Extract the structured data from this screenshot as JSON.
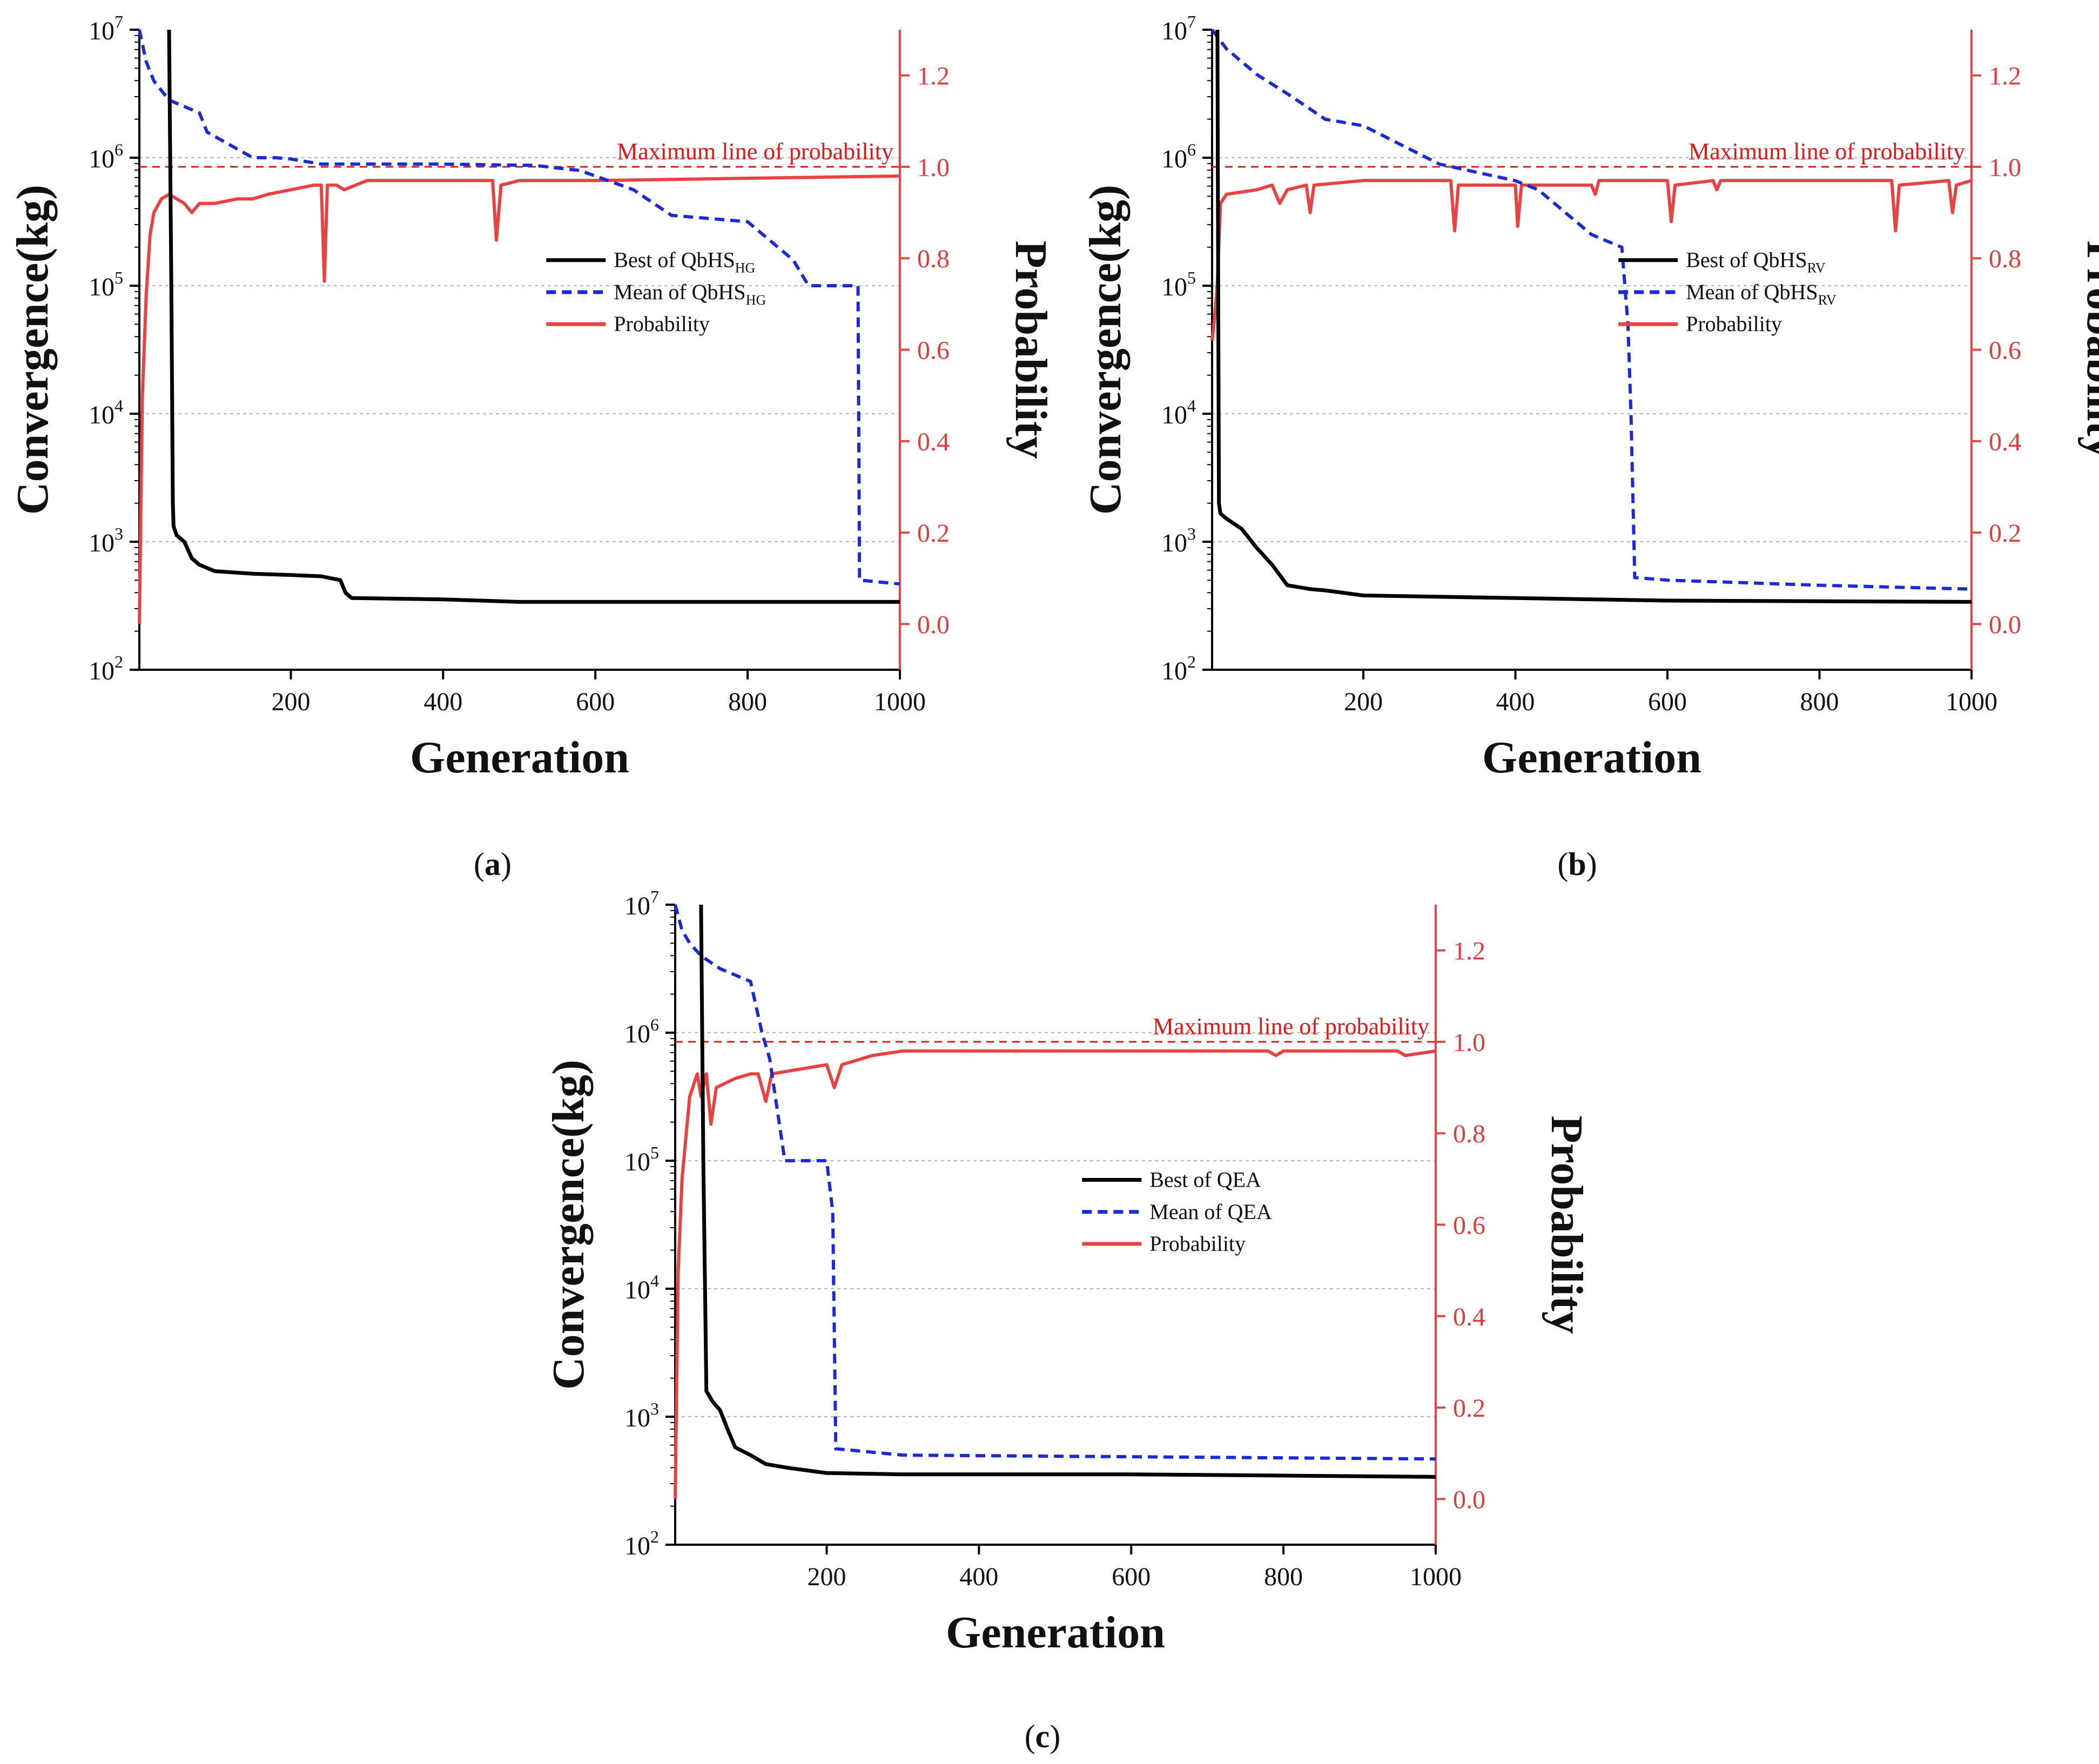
{
  "colors": {
    "best": "#000000",
    "mean": "#1a2bd6",
    "probability": "#e84343",
    "max_line": "#e01818",
    "grid": "#b8b8b8",
    "right_axis": "#e84343"
  },
  "chart_data": [
    {
      "id": "a",
      "type": "line",
      "caption_letter": "a",
      "xlabel": "Generation",
      "ylabel_left": "Convergence(kg)",
      "ylabel_right": "Probability",
      "xlim": [
        1,
        1000
      ],
      "ylim_left_log10": [
        2,
        7
      ],
      "ylim_right": [
        -0.1,
        1.3
      ],
      "x_ticks": [
        200,
        400,
        600,
        800,
        1000
      ],
      "left_tick_labels": [
        {
          "b": "10",
          "e": "2"
        },
        {
          "b": "10",
          "e": "3"
        },
        {
          "b": "10",
          "e": "4"
        },
        {
          "b": "10",
          "e": "5"
        },
        {
          "b": "10",
          "e": "6"
        },
        {
          "b": "10",
          "e": "7"
        }
      ],
      "right_ticks": [
        "0.0",
        "0.2",
        "0.4",
        "0.6",
        "0.8",
        "1.0",
        "1.2"
      ],
      "max_line_value": 1.0,
      "max_line_label": "Maximum line of probability",
      "legend": [
        {
          "key": "best",
          "text": "Best of QbHS",
          "sub": "HG"
        },
        {
          "key": "mean",
          "text": "Mean of QbHS",
          "sub": "HG"
        },
        {
          "key": "probability",
          "text": "Probability",
          "sub": ""
        }
      ],
      "series": {
        "best": [
          [
            40,
            7.2
          ],
          [
            43,
            5.0
          ],
          [
            45,
            3.3
          ],
          [
            46,
            3.12
          ],
          [
            50,
            3.05
          ],
          [
            60,
            3.0
          ],
          [
            70,
            2.87
          ],
          [
            80,
            2.82
          ],
          [
            100,
            2.77
          ],
          [
            150,
            2.75
          ],
          [
            200,
            2.74
          ],
          [
            240,
            2.73
          ],
          [
            265,
            2.7
          ],
          [
            272,
            2.6
          ],
          [
            280,
            2.56
          ],
          [
            400,
            2.55
          ],
          [
            450,
            2.54
          ],
          [
            500,
            2.53
          ],
          [
            1000,
            2.53
          ]
        ],
        "mean": [
          [
            1,
            7.05
          ],
          [
            10,
            6.75
          ],
          [
            20,
            6.6
          ],
          [
            40,
            6.45
          ],
          [
            80,
            6.35
          ],
          [
            90,
            6.2
          ],
          [
            120,
            6.1
          ],
          [
            150,
            6.0
          ],
          [
            180,
            6.0
          ],
          [
            200,
            5.99
          ],
          [
            240,
            5.95
          ],
          [
            300,
            5.95
          ],
          [
            400,
            5.95
          ],
          [
            520,
            5.94
          ],
          [
            580,
            5.9
          ],
          [
            650,
            5.75
          ],
          [
            700,
            5.55
          ],
          [
            800,
            5.5
          ],
          [
            820,
            5.4
          ],
          [
            860,
            5.2
          ],
          [
            880,
            5.0
          ],
          [
            945,
            5.0
          ],
          [
            947,
            2.7
          ],
          [
            1000,
            2.67
          ]
        ],
        "probability": [
          [
            1,
            0.0
          ],
          [
            5,
            0.5
          ],
          [
            10,
            0.72
          ],
          [
            15,
            0.85
          ],
          [
            20,
            0.9
          ],
          [
            30,
            0.93
          ],
          [
            40,
            0.94
          ],
          [
            50,
            0.93
          ],
          [
            60,
            0.92
          ],
          [
            70,
            0.9
          ],
          [
            80,
            0.92
          ],
          [
            100,
            0.92
          ],
          [
            130,
            0.93
          ],
          [
            150,
            0.93
          ],
          [
            170,
            0.94
          ],
          [
            200,
            0.95
          ],
          [
            230,
            0.96
          ],
          [
            240,
            0.96
          ],
          [
            244,
            0.75
          ],
          [
            248,
            0.96
          ],
          [
            260,
            0.96
          ],
          [
            270,
            0.95
          ],
          [
            300,
            0.97
          ],
          [
            400,
            0.97
          ],
          [
            465,
            0.97
          ],
          [
            470,
            0.84
          ],
          [
            476,
            0.96
          ],
          [
            500,
            0.97
          ],
          [
            600,
            0.97
          ],
          [
            1000,
            0.98
          ]
        ]
      }
    },
    {
      "id": "b",
      "type": "line",
      "caption_letter": "b",
      "xlabel": "Generation",
      "ylabel_left": "Convergence(kg)",
      "ylabel_right": "Probability",
      "xlim": [
        1,
        1000
      ],
      "ylim_left_log10": [
        2,
        7
      ],
      "ylim_right": [
        -0.1,
        1.3
      ],
      "x_ticks": [
        200,
        400,
        600,
        800,
        1000
      ],
      "left_tick_labels": [
        {
          "b": "10",
          "e": "2"
        },
        {
          "b": "10",
          "e": "3"
        },
        {
          "b": "10",
          "e": "4"
        },
        {
          "b": "10",
          "e": "5"
        },
        {
          "b": "10",
          "e": "6"
        },
        {
          "b": "10",
          "e": "7"
        }
      ],
      "right_ticks": [
        "0.0",
        "0.2",
        "0.4",
        "0.6",
        "0.8",
        "1.0",
        "1.2"
      ],
      "max_line_value": 1.0,
      "max_line_label": "Maximum line of probability",
      "legend": [
        {
          "key": "best",
          "text": "Best of QbHS",
          "sub": "RV"
        },
        {
          "key": "mean",
          "text": "Mean of QbHS",
          "sub": "RV"
        },
        {
          "key": "probability",
          "text": "Probability",
          "sub": ""
        }
      ],
      "series": {
        "best": [
          [
            8,
            7.2
          ],
          [
            9,
            5.0
          ],
          [
            10,
            3.3
          ],
          [
            12,
            3.22
          ],
          [
            20,
            3.18
          ],
          [
            40,
            3.1
          ],
          [
            60,
            2.95
          ],
          [
            80,
            2.82
          ],
          [
            100,
            2.66
          ],
          [
            130,
            2.63
          ],
          [
            150,
            2.62
          ],
          [
            200,
            2.58
          ],
          [
            300,
            2.57
          ],
          [
            400,
            2.56
          ],
          [
            600,
            2.54
          ],
          [
            1000,
            2.53
          ]
        ],
        "mean": [
          [
            1,
            7.1
          ],
          [
            20,
            6.85
          ],
          [
            60,
            6.65
          ],
          [
            100,
            6.5
          ],
          [
            150,
            6.3
          ],
          [
            200,
            6.25
          ],
          [
            250,
            6.1
          ],
          [
            300,
            5.95
          ],
          [
            400,
            5.82
          ],
          [
            430,
            5.75
          ],
          [
            460,
            5.6
          ],
          [
            500,
            5.4
          ],
          [
            540,
            5.3
          ],
          [
            548,
            4.7
          ],
          [
            552,
            4.0
          ],
          [
            557,
            2.72
          ],
          [
            600,
            2.7
          ],
          [
            800,
            2.66
          ],
          [
            1000,
            2.63
          ]
        ],
        "probability": [
          [
            1,
            0.62
          ],
          [
            5,
            0.68
          ],
          [
            8,
            0.75
          ],
          [
            12,
            0.92
          ],
          [
            20,
            0.94
          ],
          [
            60,
            0.95
          ],
          [
            80,
            0.96
          ],
          [
            90,
            0.92
          ],
          [
            100,
            0.95
          ],
          [
            125,
            0.96
          ],
          [
            130,
            0.9
          ],
          [
            135,
            0.96
          ],
          [
            200,
            0.97
          ],
          [
            315,
            0.97
          ],
          [
            320,
            0.86
          ],
          [
            325,
            0.96
          ],
          [
            400,
            0.96
          ],
          [
            403,
            0.87
          ],
          [
            408,
            0.96
          ],
          [
            500,
            0.96
          ],
          [
            505,
            0.94
          ],
          [
            510,
            0.97
          ],
          [
            600,
            0.97
          ],
          [
            605,
            0.88
          ],
          [
            610,
            0.96
          ],
          [
            660,
            0.97
          ],
          [
            665,
            0.95
          ],
          [
            670,
            0.97
          ],
          [
            895,
            0.97
          ],
          [
            900,
            0.86
          ],
          [
            905,
            0.96
          ],
          [
            970,
            0.97
          ],
          [
            975,
            0.9
          ],
          [
            980,
            0.96
          ],
          [
            1000,
            0.97
          ]
        ]
      }
    },
    {
      "id": "c",
      "type": "line",
      "caption_letter": "c",
      "xlabel": "Generation",
      "ylabel_left": "Convergence(kg)",
      "ylabel_right": "Probability",
      "xlim": [
        1,
        1000
      ],
      "ylim_left_log10": [
        2,
        7
      ],
      "ylim_right": [
        -0.1,
        1.3
      ],
      "x_ticks": [
        200,
        400,
        600,
        800,
        1000
      ],
      "left_tick_labels": [
        {
          "b": "10",
          "e": "2"
        },
        {
          "b": "10",
          "e": "3"
        },
        {
          "b": "10",
          "e": "4"
        },
        {
          "b": "10",
          "e": "5"
        },
        {
          "b": "10",
          "e": "6"
        },
        {
          "b": "10",
          "e": "7"
        }
      ],
      "right_ticks": [
        "0.0",
        "0.2",
        "0.4",
        "0.6",
        "0.8",
        "1.0",
        "1.2"
      ],
      "max_line_value": 1.0,
      "max_line_label": "Maximum line of probability",
      "legend": [
        {
          "key": "best",
          "text": "Best of QEA",
          "sub": ""
        },
        {
          "key": "mean",
          "text": "Mean of QEA",
          "sub": ""
        },
        {
          "key": "probability",
          "text": "Probability",
          "sub": ""
        }
      ],
      "series": {
        "best": [
          [
            35,
            7.2
          ],
          [
            38,
            5.0
          ],
          [
            42,
            3.2
          ],
          [
            50,
            3.12
          ],
          [
            60,
            3.05
          ],
          [
            70,
            2.9
          ],
          [
            80,
            2.76
          ],
          [
            100,
            2.7
          ],
          [
            120,
            2.63
          ],
          [
            150,
            2.6
          ],
          [
            200,
            2.56
          ],
          [
            300,
            2.55
          ],
          [
            600,
            2.55
          ],
          [
            800,
            2.54
          ],
          [
            1000,
            2.53
          ]
        ],
        "mean": [
          [
            1,
            7.05
          ],
          [
            10,
            6.8
          ],
          [
            20,
            6.7
          ],
          [
            35,
            6.6
          ],
          [
            60,
            6.5
          ],
          [
            100,
            6.4
          ],
          [
            115,
            6.0
          ],
          [
            125,
            5.8
          ],
          [
            145,
            5.0
          ],
          [
            200,
            5.0
          ],
          [
            208,
            4.6
          ],
          [
            212,
            2.75
          ],
          [
            300,
            2.7
          ],
          [
            1000,
            2.67
          ]
        ],
        "probability": [
          [
            1,
            0.0
          ],
          [
            5,
            0.5
          ],
          [
            10,
            0.7
          ],
          [
            20,
            0.88
          ],
          [
            30,
            0.93
          ],
          [
            35,
            0.88
          ],
          [
            42,
            0.93
          ],
          [
            48,
            0.82
          ],
          [
            55,
            0.9
          ],
          [
            80,
            0.92
          ],
          [
            100,
            0.93
          ],
          [
            110,
            0.93
          ],
          [
            120,
            0.87
          ],
          [
            128,
            0.93
          ],
          [
            200,
            0.95
          ],
          [
            210,
            0.9
          ],
          [
            220,
            0.95
          ],
          [
            260,
            0.97
          ],
          [
            300,
            0.98
          ],
          [
            780,
            0.98
          ],
          [
            790,
            0.97
          ],
          [
            800,
            0.98
          ],
          [
            950,
            0.98
          ],
          [
            960,
            0.97
          ],
          [
            1000,
            0.98
          ]
        ]
      }
    }
  ]
}
